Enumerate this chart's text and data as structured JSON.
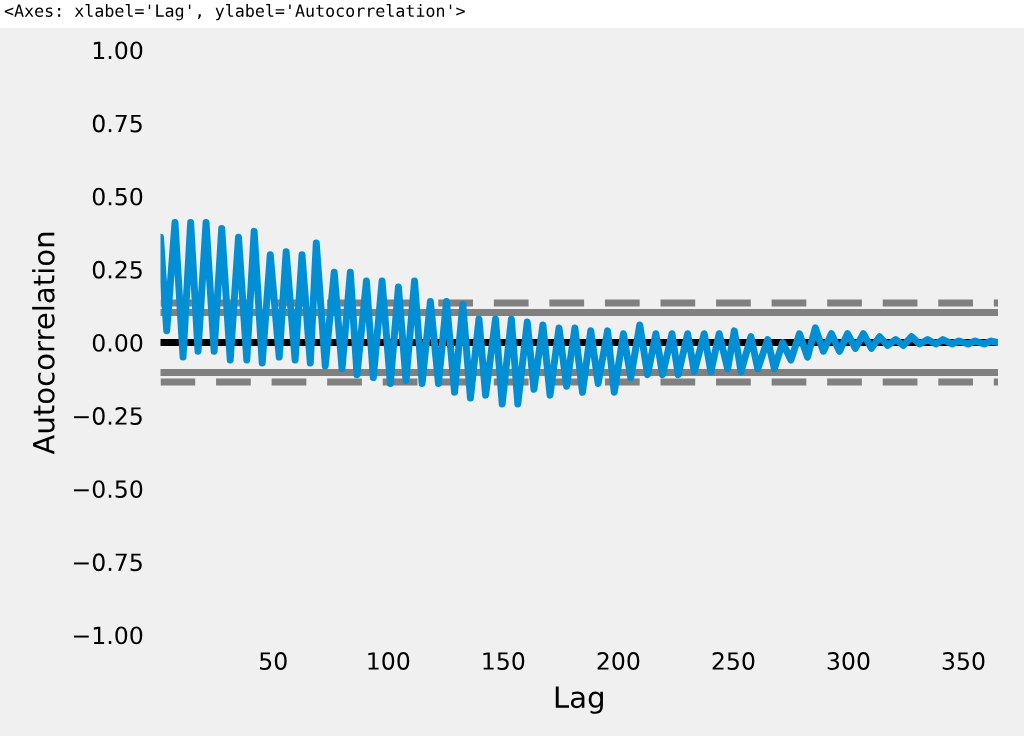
{
  "chart_data": {
    "type": "line",
    "xlabel": "Lag",
    "ylabel": "Autocorrelation",
    "annotations": [
      "<Axes: xlabel='Lag', ylabel='Autocorrelation'>"
    ],
    "xlim": [
      1,
      365
    ],
    "xticks": [
      50,
      100,
      150,
      200,
      250,
      300,
      350
    ],
    "ylim": [
      -1,
      1
    ],
    "yticks": [
      {
        "value": -1,
        "label": "−1.00"
      },
      {
        "value": -0.75,
        "label": "−0.75"
      },
      {
        "value": -0.5,
        "label": "−0.50"
      },
      {
        "value": -0.25,
        "label": "−0.25"
      },
      {
        "value": 0,
        "label": "0.00"
      },
      {
        "value": 0.25,
        "label": "0.25"
      },
      {
        "value": 0.5,
        "label": "0.50"
      },
      {
        "value": 0.75,
        "label": "0.75"
      },
      {
        "value": 1,
        "label": "1.00"
      }
    ],
    "grid": false,
    "marker": "none",
    "line_style": "solid",
    "ref_lines": [
      {
        "axis": "y",
        "value": 0,
        "color": "#000000",
        "line_style": "solid"
      },
      {
        "axis": "y",
        "value": 0.1026,
        "color": "#808080",
        "line_style": "solid"
      },
      {
        "axis": "y",
        "value": -0.1026,
        "color": "#808080",
        "line_style": "solid"
      },
      {
        "axis": "y",
        "value": 0.1348,
        "color": "#808080",
        "line_style": "dashed"
      },
      {
        "axis": "y",
        "value": -0.1348,
        "color": "#808080",
        "line_style": "dashed"
      }
    ],
    "series": [
      {
        "color": "#008fd5",
        "x": [
          1,
          3.7,
          7.3,
          10.8,
          14.1,
          17.3,
          20.8,
          24.3,
          27.6,
          31.3,
          34.9,
          38.5,
          41.7,
          45.2,
          48.7,
          52.6,
          55.6,
          59.5,
          62.5,
          66.1,
          68.7,
          72.6,
          76.5,
          79.9,
          83.5,
          86.4,
          90.5,
          93.5,
          97.3,
          100.9,
          104.4,
          107.7,
          111.4,
          114.7,
          118.3,
          121.8,
          125.3,
          128.8,
          132.4,
          135.7,
          139.4,
          142.3,
          146.6,
          149.5,
          153.5,
          156.3,
          160.4,
          163.3,
          167.2,
          170.3,
          174.2,
          177.5,
          181.1,
          184.4,
          188,
          191.2,
          195.3,
          198.2,
          202.2,
          205.4,
          209.3,
          212.7,
          216.3,
          219.2,
          223.3,
          226,
          230.1,
          233,
          237.3,
          240.2,
          243.8,
          247.5,
          250.4,
          253.3,
          257.6,
          260.6,
          264.9,
          267.8,
          271.4,
          275,
          278.7,
          282.2,
          285.6,
          289.1,
          292.6,
          296.1,
          299.6,
          303.0,
          306.5,
          310.0,
          313.5,
          317.0,
          320.5,
          323.9,
          327.4,
          330.9,
          334.4,
          338,
          341,
          345,
          348,
          352,
          355,
          359,
          362,
          365
        ],
        "values": [
          0.36,
          0.04,
          0.41,
          -0.05,
          0.41,
          -0.03,
          0.41,
          -0.03,
          0.39,
          -0.06,
          0.36,
          -0.06,
          0.38,
          -0.07,
          0.3,
          -0.05,
          0.31,
          -0.06,
          0.3,
          -0.07,
          0.34,
          -0.08,
          0.24,
          -0.09,
          0.24,
          -0.11,
          0.21,
          -0.12,
          0.21,
          -0.14,
          0.19,
          -0.13,
          0.21,
          -0.14,
          0.14,
          -0.14,
          0.14,
          -0.17,
          0.13,
          -0.19,
          0.08,
          -0.18,
          0.08,
          -0.21,
          0.08,
          -0.21,
          0.07,
          -0.16,
          0.06,
          -0.18,
          0.05,
          -0.15,
          0.05,
          -0.17,
          0.04,
          -0.14,
          0.04,
          -0.17,
          0.03,
          -0.12,
          0.06,
          -0.11,
          0.03,
          -0.11,
          0.03,
          -0.11,
          0.03,
          -0.1,
          0.03,
          -0.1,
          0.03,
          -0.09,
          0.04,
          -0.1,
          0.02,
          -0.09,
          0.01,
          -0.09,
          0.0,
          -0.06,
          0.03,
          -0.05,
          0.05,
          -0.03,
          0.03,
          -0.03,
          0.03,
          -0.02,
          0.03,
          -0.02,
          0.02,
          -0.01,
          0.01,
          -0.01,
          0.02,
          -0.005,
          0.01,
          -0.005,
          0.01,
          -0.005,
          0.005,
          -0.005,
          0.005,
          -0.005,
          0.005,
          0.0
        ]
      }
    ]
  }
}
